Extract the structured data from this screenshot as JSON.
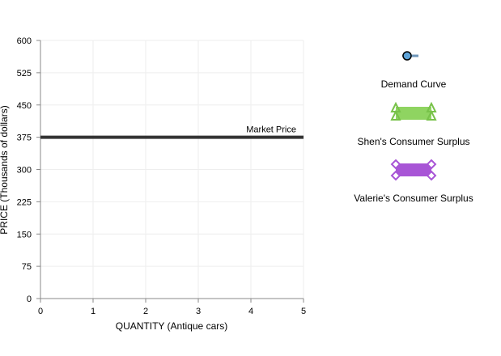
{
  "chart_data": {
    "type": "line",
    "xlabel": "QUANTITY (Antique cars)",
    "ylabel": "PRICE (Thousands of dollars)",
    "xlim": [
      0,
      5
    ],
    "ylim": [
      0,
      600
    ],
    "x_ticks": [
      0,
      1,
      2,
      3,
      4,
      5
    ],
    "y_ticks": [
      0,
      75,
      150,
      225,
      300,
      375,
      450,
      525,
      600
    ],
    "grid": true,
    "series": [
      {
        "name": "Market Price",
        "color": "#333333",
        "points": [
          [
            0,
            375
          ],
          [
            5,
            375
          ]
        ]
      }
    ],
    "annotations": [
      {
        "text": "Market Price",
        "x": 5,
        "y": 375
      }
    ]
  },
  "legend": {
    "placement": "right",
    "items": [
      {
        "label": "Demand Curve",
        "icon": "circle-line-icon",
        "color": "#6c94b8",
        "marker_fill": "#5ea3d8"
      },
      {
        "label": "Shen's Consumer Surplus",
        "icon": "triangle-region-icon",
        "color": "#8fd461",
        "stroke": "#78c24a"
      },
      {
        "label": "Valerie's Consumer Surplus",
        "icon": "diamond-region-icon",
        "color": "#a855d6",
        "stroke": "#a855d6"
      }
    ]
  }
}
